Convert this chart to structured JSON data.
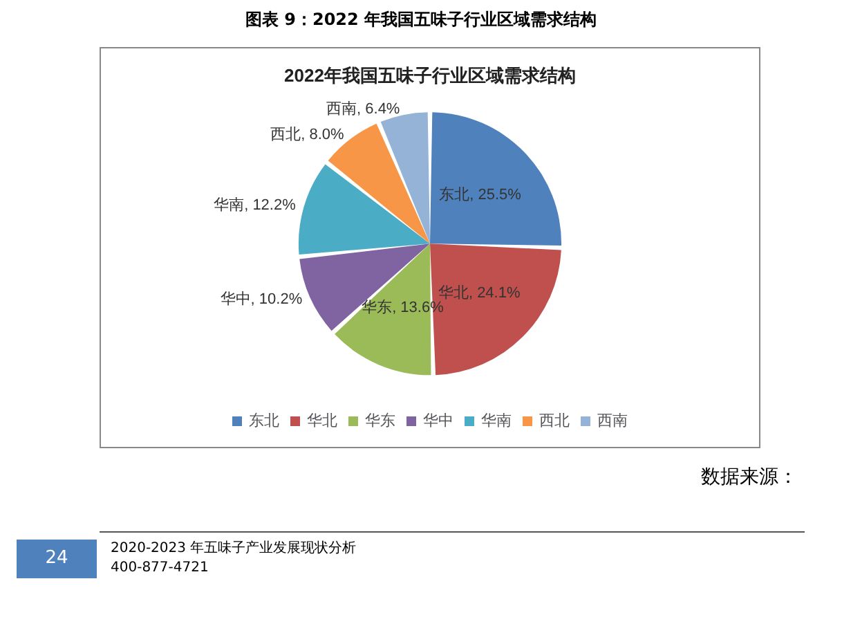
{
  "chart_data": {
    "type": "pie",
    "title": "图表 9：2022 年我国五味子行业区域需求结构",
    "subtitle": "2022年我国五味子行业区域需求结构",
    "categories": [
      "东北",
      "华北",
      "华东",
      "华中",
      "华南",
      "西北",
      "西南"
    ],
    "values": [
      25.5,
      24.1,
      13.6,
      10.2,
      12.2,
      8.0,
      6.4
    ],
    "value_labels": [
      "东北, 25.5%",
      "华北, 24.1%",
      "华东, 13.6%",
      "华中, 10.2%",
      "华南, 12.2%",
      "西北, 8.0%",
      "西南, 6.4%"
    ],
    "colors": [
      "#4f81bd",
      "#c0504d",
      "#9bbb59",
      "#8064a2",
      "#4bacc6",
      "#f79646",
      "#95b3d7"
    ],
    "legend": "bottom",
    "annotations": [
      "数据来源：",
      "24",
      "2020-2023 年五味子产业发展现状分析",
      "400-877-4721"
    ]
  }
}
